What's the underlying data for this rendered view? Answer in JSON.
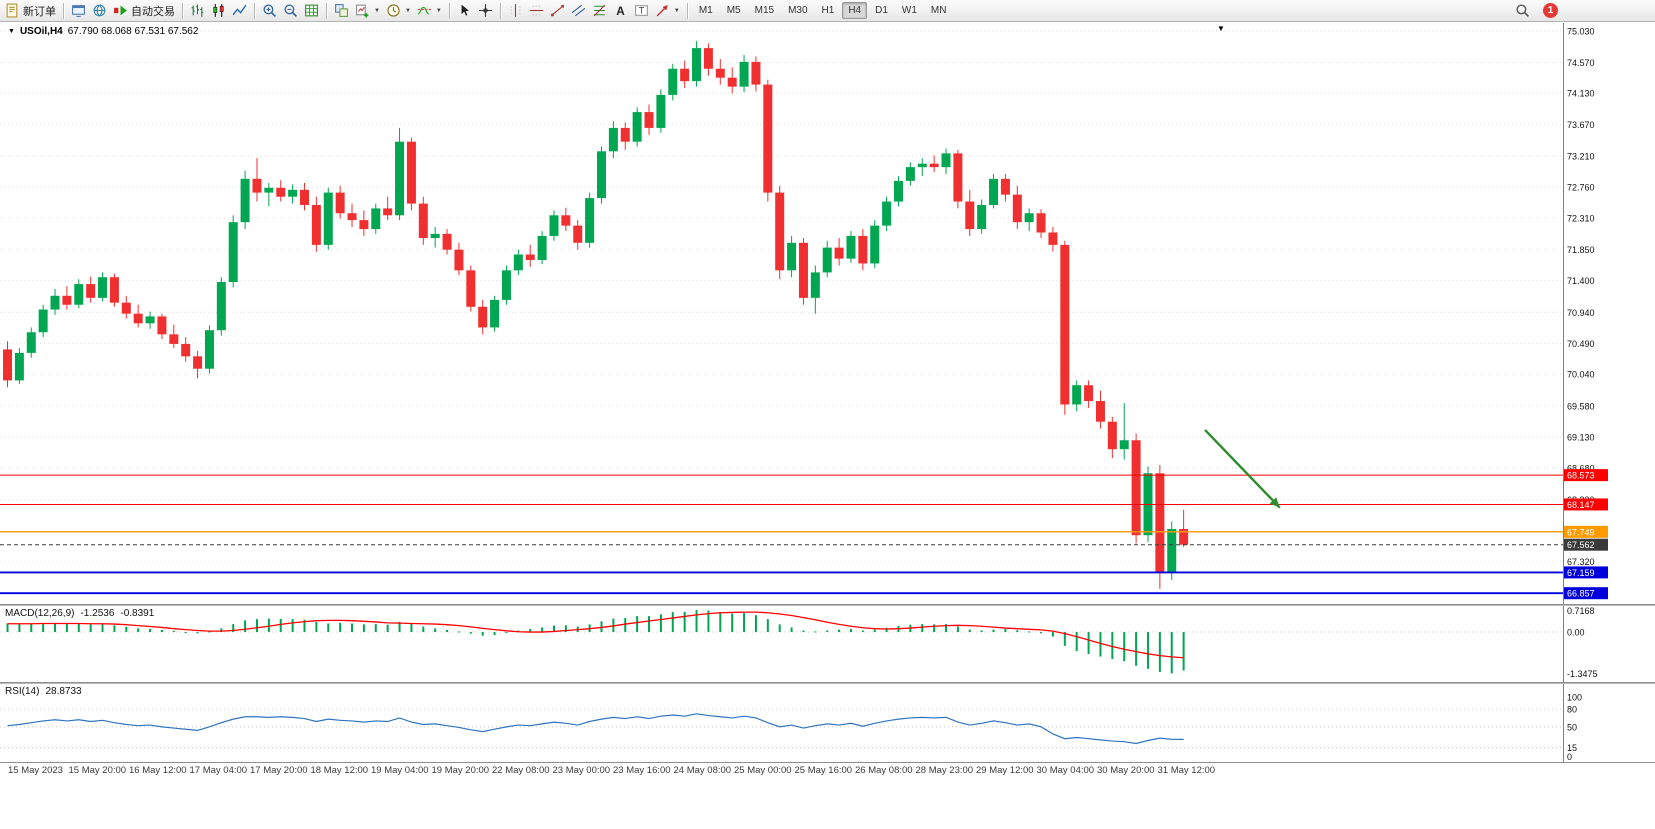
{
  "window": {
    "title_triangle": "▼",
    "symbol_label": "USOil,H4",
    "ohlc": "67.790 68.068 67.531 67.562",
    "corner_triangle": "▼"
  },
  "colors": {
    "up": "#00a651",
    "down": "#f03030",
    "grid": "#dedede",
    "axis_text": "#111111",
    "macd_hist": "#00a651",
    "macd_signal": "#ff0000",
    "rsi_line": "#2f74c0",
    "red": "#ff0000",
    "orange": "#ff9a00",
    "blue": "#0000dd",
    "bid": "#3a3a3a",
    "arrow": "#2e8b2e"
  },
  "toolbar": {
    "groups": [
      {
        "items": [
          {
            "name": "new-order-button",
            "icon": "doc",
            "label": "新订单"
          }
        ]
      },
      {
        "items": [
          {
            "name": "charts-window-button",
            "icon": "monitor"
          },
          {
            "name": "market-watch-button",
            "icon": "globe"
          },
          {
            "name": "auto-trading-button",
            "icon": "autotrade",
            "label": "自动交易"
          }
        ]
      },
      {
        "items": [
          {
            "name": "bar-chart-button",
            "icon": "bars"
          },
          {
            "name": "candlestick-chart-button",
            "icon": "candle"
          },
          {
            "name": "line-chart-button",
            "icon": "linechart"
          }
        ]
      },
      {
        "items": [
          {
            "name": "zoom-in-button",
            "icon": "zoomin"
          },
          {
            "name": "zoom-out-button",
            "icon": "zoomout"
          },
          {
            "name": "grid-button",
            "icon": "grid"
          }
        ]
      },
      {
        "items": [
          {
            "name": "tile-windows-button",
            "icon": "tile"
          },
          {
            "name": "new-chart-button",
            "icon": "newchart",
            "caret": true
          },
          {
            "name": "period-button",
            "icon": "clock",
            "caret": true
          },
          {
            "name": "indicators-button",
            "icon": "indicator",
            "caret": true
          }
        ]
      },
      {
        "items": [
          {
            "name": "cursor-button",
            "icon": "cursor"
          },
          {
            "name": "crosshair-button",
            "icon": "cross"
          }
        ]
      },
      {
        "items": [
          {
            "name": "vertical-line-button",
            "icon": "vline"
          },
          {
            "name": "horizontal-line-button",
            "icon": "hline"
          },
          {
            "name": "trendline-button",
            "icon": "trend"
          },
          {
            "name": "equidistant-channel-button",
            "icon": "channel"
          },
          {
            "name": "fibonacci-button",
            "icon": "fibo"
          },
          {
            "name": "text-tool-button",
            "icon": "textA"
          },
          {
            "name": "label-tool-button",
            "icon": "labelT"
          },
          {
            "name": "arrows-tool-button",
            "icon": "arrowIcon",
            "caret": true
          }
        ]
      }
    ],
    "timeframes": [
      {
        "name": "tf-m1",
        "label": "M1"
      },
      {
        "name": "tf-m5",
        "label": "M5"
      },
      {
        "name": "tf-m15",
        "label": "M15"
      },
      {
        "name": "tf-m30",
        "label": "M30"
      },
      {
        "name": "tf-h1",
        "label": "H1"
      },
      {
        "name": "tf-h4",
        "label": "H4",
        "active": true
      },
      {
        "name": "tf-d1",
        "label": "D1"
      },
      {
        "name": "tf-w1",
        "label": "W1"
      },
      {
        "name": "tf-mn",
        "label": "MN"
      }
    ],
    "right": [
      {
        "name": "search-button",
        "icon": "search"
      }
    ],
    "notification_count": "1"
  },
  "chart_data": [
    {
      "type": "candlestick",
      "title": "USOil,H4",
      "ohlc_display": {
        "open": "67.790",
        "high": "68.068",
        "low": "67.531",
        "close": "67.562"
      },
      "y_axis_labels": [
        "75.030",
        "74.570",
        "74.130",
        "73.670",
        "73.210",
        "72.760",
        "72.310",
        "71.850",
        "71.400",
        "70.940",
        "70.490",
        "70.040",
        "69.580",
        "69.130",
        "68.680",
        "68.220",
        "67.760",
        "67.320",
        "66.860"
      ],
      "ylim": [
        66.7,
        75.145
      ],
      "x_labels": [
        "15 May 2023",
        "15 May 20:00",
        "16 May 12:00",
        "17 May 04:00",
        "17 May 20:00",
        "18 May 12:00",
        "19 May 04:00",
        "19 May 20:00",
        "22 May 08:00",
        "23 May 00:00",
        "23 May 16:00",
        "24 May 08:00",
        "25 May 00:00",
        "25 May 16:00",
        "26 May 08:00",
        "28 May 23:00",
        "29 May 12:00",
        "30 May 04:00",
        "30 May 20:00",
        "31 May 12:00"
      ],
      "candles": [
        [
          70.4,
          70.52,
          69.85,
          69.95
        ],
        [
          69.95,
          70.42,
          69.9,
          70.35
        ],
        [
          70.35,
          70.72,
          70.28,
          70.65
        ],
        [
          70.65,
          71.05,
          70.58,
          70.98
        ],
        [
          70.98,
          71.28,
          70.9,
          71.18
        ],
        [
          71.18,
          71.32,
          70.98,
          71.05
        ],
        [
          71.05,
          71.42,
          71.0,
          71.35
        ],
        [
          71.35,
          71.46,
          71.08,
          71.15
        ],
        [
          71.15,
          71.52,
          71.1,
          71.45
        ],
        [
          71.45,
          71.5,
          71.02,
          71.08
        ],
        [
          71.08,
          71.18,
          70.85,
          70.92
        ],
        [
          70.92,
          71.05,
          70.72,
          70.78
        ],
        [
          70.78,
          70.95,
          70.7,
          70.88
        ],
        [
          70.88,
          70.92,
          70.55,
          70.62
        ],
        [
          70.62,
          70.76,
          70.42,
          70.48
        ],
        [
          70.48,
          70.58,
          70.22,
          70.3
        ],
        [
          70.3,
          70.38,
          69.98,
          70.12
        ],
        [
          70.12,
          70.75,
          70.05,
          70.68
        ],
        [
          70.68,
          71.45,
          70.6,
          71.38
        ],
        [
          71.38,
          72.35,
          71.3,
          72.25
        ],
        [
          72.25,
          73.0,
          72.15,
          72.88
        ],
        [
          72.88,
          73.18,
          72.55,
          72.68
        ],
        [
          72.68,
          72.82,
          72.48,
          72.75
        ],
        [
          72.75,
          72.86,
          72.55,
          72.62
        ],
        [
          72.62,
          72.8,
          72.52,
          72.72
        ],
        [
          72.72,
          72.82,
          72.42,
          72.5
        ],
        [
          72.5,
          72.62,
          71.82,
          71.92
        ],
        [
          71.92,
          72.75,
          71.85,
          72.68
        ],
        [
          72.68,
          72.78,
          72.3,
          72.38
        ],
        [
          72.38,
          72.52,
          72.18,
          72.28
        ],
        [
          72.28,
          72.42,
          72.05,
          72.15
        ],
        [
          72.15,
          72.52,
          72.08,
          72.45
        ],
        [
          72.45,
          72.62,
          72.28,
          72.35
        ],
        [
          72.35,
          73.62,
          72.28,
          73.42
        ],
        [
          73.42,
          73.48,
          72.42,
          72.52
        ],
        [
          72.52,
          72.62,
          71.92,
          72.02
        ],
        [
          72.02,
          72.18,
          71.88,
          72.08
        ],
        [
          72.08,
          72.15,
          71.78,
          71.85
        ],
        [
          71.85,
          71.95,
          71.48,
          71.55
        ],
        [
          71.55,
          71.62,
          70.95,
          71.02
        ],
        [
          71.02,
          71.12,
          70.62,
          70.72
        ],
        [
          70.72,
          71.18,
          70.66,
          71.12
        ],
        [
          71.12,
          71.62,
          71.05,
          71.55
        ],
        [
          71.55,
          71.85,
          71.48,
          71.78
        ],
        [
          71.78,
          71.92,
          71.6,
          71.7
        ],
        [
          71.7,
          72.12,
          71.64,
          72.05
        ],
        [
          72.05,
          72.42,
          71.98,
          72.35
        ],
        [
          72.35,
          72.46,
          72.12,
          72.2
        ],
        [
          72.2,
          72.28,
          71.85,
          71.95
        ],
        [
          71.95,
          72.68,
          71.88,
          72.6
        ],
        [
          72.6,
          73.35,
          72.52,
          73.28
        ],
        [
          73.28,
          73.72,
          73.18,
          73.62
        ],
        [
          73.62,
          73.7,
          73.3,
          73.42
        ],
        [
          73.42,
          73.92,
          73.35,
          73.85
        ],
        [
          73.85,
          73.96,
          73.52,
          73.62
        ],
        [
          73.62,
          74.18,
          73.55,
          74.1
        ],
        [
          74.1,
          74.55,
          74.02,
          74.48
        ],
        [
          74.48,
          74.6,
          74.2,
          74.3
        ],
        [
          74.3,
          74.88,
          74.22,
          74.78
        ],
        [
          74.78,
          74.85,
          74.38,
          74.48
        ],
        [
          74.48,
          74.62,
          74.25,
          74.35
        ],
        [
          74.35,
          74.5,
          74.12,
          74.22
        ],
        [
          74.22,
          74.68,
          74.14,
          74.58
        ],
        [
          74.58,
          74.66,
          74.15,
          74.25
        ],
        [
          74.25,
          74.32,
          72.55,
          72.68
        ],
        [
          72.68,
          72.78,
          71.42,
          71.55
        ],
        [
          71.55,
          72.05,
          71.45,
          71.95
        ],
        [
          71.95,
          72.02,
          71.05,
          71.15
        ],
        [
          71.15,
          71.62,
          70.92,
          71.52
        ],
        [
          71.52,
          71.98,
          71.45,
          71.88
        ],
        [
          71.88,
          72.02,
          71.62,
          71.72
        ],
        [
          71.72,
          72.12,
          71.66,
          72.05
        ],
        [
          72.05,
          72.15,
          71.55,
          71.65
        ],
        [
          71.65,
          72.28,
          71.58,
          72.2
        ],
        [
          72.2,
          72.62,
          72.12,
          72.55
        ],
        [
          72.55,
          72.92,
          72.48,
          72.85
        ],
        [
          72.85,
          73.12,
          72.78,
          73.05
        ],
        [
          73.05,
          73.18,
          72.92,
          73.1
        ],
        [
          73.1,
          73.22,
          72.98,
          73.05
        ],
        [
          73.05,
          73.32,
          72.95,
          73.25
        ],
        [
          73.25,
          73.3,
          72.45,
          72.55
        ],
        [
          72.55,
          72.72,
          72.05,
          72.15
        ],
        [
          72.15,
          72.58,
          72.08,
          72.5
        ],
        [
          72.5,
          72.95,
          72.45,
          72.88
        ],
        [
          72.88,
          72.95,
          72.55,
          72.65
        ],
        [
          72.65,
          72.78,
          72.15,
          72.25
        ],
        [
          72.25,
          72.45,
          72.12,
          72.38
        ],
        [
          72.38,
          72.44,
          72.02,
          72.1
        ],
        [
          72.1,
          72.18,
          71.82,
          71.92
        ],
        [
          71.92,
          71.98,
          69.45,
          69.6
        ],
        [
          69.6,
          69.95,
          69.5,
          69.88
        ],
        [
          69.88,
          69.95,
          69.55,
          69.65
        ],
        [
          69.65,
          69.8,
          69.25,
          69.35
        ],
        [
          69.35,
          69.42,
          68.82,
          68.95
        ],
        [
          68.95,
          69.62,
          68.8,
          69.08
        ],
        [
          69.08,
          69.18,
          67.58,
          67.7
        ],
        [
          67.7,
          68.7,
          67.6,
          68.6
        ],
        [
          68.6,
          68.72,
          66.92,
          67.15
        ],
        [
          67.15,
          67.9,
          67.05,
          67.79
        ],
        [
          67.79,
          68.068,
          67.531,
          67.562
        ]
      ],
      "levels": [
        {
          "label": "68.573",
          "value": 68.573,
          "color": "red",
          "width": 1
        },
        {
          "label": "68.147",
          "value": 68.147,
          "color": "red",
          "width": 1
        },
        {
          "label": "67.749",
          "value": 67.749,
          "color": "orange",
          "width": 1.4
        },
        {
          "label": "67.562",
          "value": 67.562,
          "color": "bid",
          "width": 1,
          "dashed": true
        },
        {
          "label": "67.159",
          "value": 67.159,
          "color": "blue",
          "width": 1.8
        },
        {
          "label": "66.857",
          "value": 66.857,
          "color": "blue",
          "width": 1.8
        }
      ],
      "arrow": {
        "from_index": 100.8,
        "from_price": 69.23,
        "to_index": 107.1,
        "to_price": 68.1,
        "color": "arrow"
      }
    },
    {
      "type": "bar",
      "label": "MACD(12,26,9)",
      "value_main": "-1.2536",
      "value_signal": "-0.8391",
      "axis_labels": [
        "0.7168",
        "0.00",
        "-1.3475"
      ],
      "ylim": [
        0.85,
        -1.63
      ],
      "histogram": [
        0.28,
        0.26,
        0.27,
        0.29,
        0.3,
        0.28,
        0.27,
        0.25,
        0.26,
        0.22,
        0.17,
        0.12,
        0.1,
        0.07,
        0.04,
        0.0,
        -0.04,
        0.02,
        0.12,
        0.26,
        0.38,
        0.42,
        0.44,
        0.43,
        0.42,
        0.4,
        0.33,
        0.28,
        0.3,
        0.28,
        0.25,
        0.26,
        0.24,
        0.33,
        0.28,
        0.18,
        0.12,
        0.07,
        0.02,
        -0.05,
        -0.12,
        -0.1,
        -0.03,
        0.05,
        0.1,
        0.15,
        0.21,
        0.22,
        0.18,
        0.25,
        0.35,
        0.44,
        0.46,
        0.52,
        0.52,
        0.58,
        0.65,
        0.66,
        0.7168,
        0.7,
        0.65,
        0.6,
        0.62,
        0.55,
        0.42,
        0.25,
        0.15,
        0.05,
        0.02,
        0.05,
        0.08,
        0.1,
        0.05,
        0.08,
        0.14,
        0.2,
        0.24,
        0.26,
        0.25,
        0.26,
        0.18,
        0.08,
        0.05,
        0.08,
        0.1,
        0.06,
        0.02,
        -0.04,
        -0.15,
        -0.45,
        -0.62,
        -0.72,
        -0.8,
        -0.88,
        -0.95,
        -1.1,
        -1.2,
        -1.3,
        -1.3475,
        -1.2536
      ],
      "signal": [
        0.27,
        0.27,
        0.27,
        0.28,
        0.28,
        0.28,
        0.28,
        0.27,
        0.27,
        0.26,
        0.24,
        0.21,
        0.18,
        0.15,
        0.11,
        0.08,
        0.05,
        0.03,
        0.03,
        0.05,
        0.09,
        0.14,
        0.19,
        0.25,
        0.3,
        0.34,
        0.37,
        0.38,
        0.38,
        0.37,
        0.35,
        0.33,
        0.3,
        0.29,
        0.28,
        0.27,
        0.26,
        0.24,
        0.21,
        0.17,
        0.12,
        0.08,
        0.04,
        0.01,
        0.0,
        0.0,
        0.02,
        0.05,
        0.08,
        0.11,
        0.15,
        0.2,
        0.26,
        0.31,
        0.36,
        0.41,
        0.46,
        0.51,
        0.56,
        0.6,
        0.63,
        0.64,
        0.65,
        0.65,
        0.63,
        0.59,
        0.54,
        0.47,
        0.4,
        0.32,
        0.25,
        0.19,
        0.14,
        0.11,
        0.1,
        0.11,
        0.13,
        0.16,
        0.19,
        0.21,
        0.22,
        0.21,
        0.19,
        0.16,
        0.13,
        0.11,
        0.09,
        0.07,
        0.03,
        -0.05,
        -0.15,
        -0.26,
        -0.37,
        -0.47,
        -0.56,
        -0.64,
        -0.71,
        -0.77,
        -0.81,
        -0.8391
      ]
    },
    {
      "type": "line",
      "label": "RSI(14)",
      "value": "28.8733",
      "axis_labels": [
        "100",
        "80",
        "50",
        "15",
        "0"
      ],
      "level_lines": [
        80,
        50,
        15
      ],
      "ylim": [
        0,
        100
      ],
      "values": [
        52,
        54,
        57,
        60,
        62,
        60,
        62,
        59,
        61,
        57,
        54,
        52,
        53,
        50,
        48,
        46,
        44,
        50,
        57,
        63,
        67,
        67,
        66,
        67,
        66,
        64,
        59,
        63,
        61,
        60,
        58,
        60,
        59,
        65,
        58,
        54,
        55,
        52,
        49,
        45,
        42,
        46,
        50,
        53,
        52,
        55,
        58,
        56,
        53,
        59,
        63,
        66,
        64,
        67,
        64,
        68,
        70,
        68,
        72,
        69,
        67,
        65,
        68,
        65,
        57,
        50,
        53,
        48,
        52,
        55,
        53,
        56,
        51,
        56,
        60,
        63,
        65,
        66,
        65,
        66,
        58,
        53,
        56,
        60,
        57,
        53,
        55,
        50,
        38,
        30,
        32,
        30,
        28,
        26,
        25,
        22,
        27,
        31,
        29,
        28.87
      ]
    }
  ]
}
